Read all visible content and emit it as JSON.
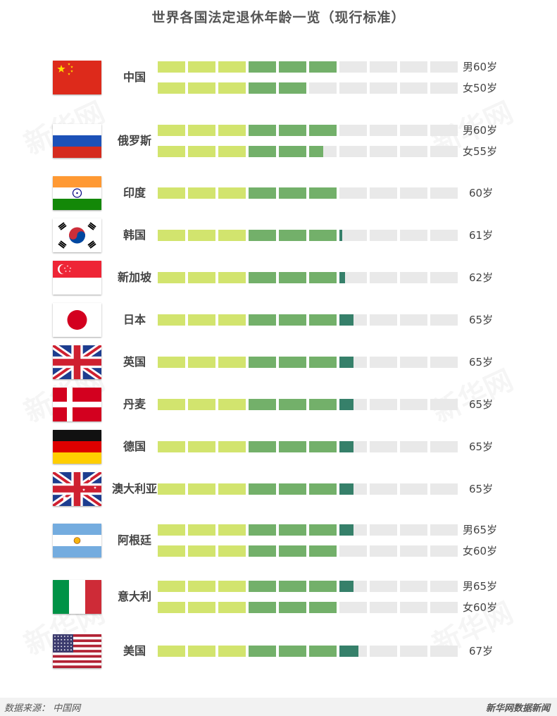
{
  "title": "世界各国法定退休年龄一览（现行标准）",
  "footer": {
    "source": "数据来源： 中国网",
    "brand": "新华网数据新闻"
  },
  "watermark": "新华网",
  "colors": {
    "segment_light": "#d2e46e",
    "segment_mid": "#73b06a",
    "segment_dark": "#36806a",
    "track": "#e9e9e9"
  },
  "chart_data": {
    "type": "bar",
    "title": "世界各国法定退休年龄一览（现行标准）",
    "unit": "岁",
    "xlim": [
      0,
      100
    ],
    "segment_size": 10,
    "countries": [
      {
        "name": "中国",
        "flag_icon": "china-flag-icon",
        "bars": [
          {
            "value": 60,
            "label": "男60岁"
          },
          {
            "value": 50,
            "label": "女50岁"
          }
        ]
      },
      {
        "name": "俄罗斯",
        "flag_icon": "russia-flag-icon",
        "bars": [
          {
            "value": 60,
            "label": "男60岁"
          },
          {
            "value": 55,
            "label": "女55岁"
          }
        ]
      },
      {
        "name": "印度",
        "flag_icon": "india-flag-icon",
        "bars": [
          {
            "value": 60,
            "label": "60岁"
          }
        ]
      },
      {
        "name": "韩国",
        "flag_icon": "korea-flag-icon",
        "bars": [
          {
            "value": 61,
            "label": "61岁"
          }
        ]
      },
      {
        "name": "新加坡",
        "flag_icon": "singapore-flag-icon",
        "bars": [
          {
            "value": 62,
            "label": "62岁"
          }
        ]
      },
      {
        "name": "日本",
        "flag_icon": "japan-flag-icon",
        "bars": [
          {
            "value": 65,
            "label": "65岁"
          }
        ]
      },
      {
        "name": "英国",
        "flag_icon": "uk-flag-icon",
        "bars": [
          {
            "value": 65,
            "label": "65岁"
          }
        ]
      },
      {
        "name": "丹麦",
        "flag_icon": "denmark-flag-icon",
        "bars": [
          {
            "value": 65,
            "label": "65岁"
          }
        ]
      },
      {
        "name": "德国",
        "flag_icon": "germany-flag-icon",
        "bars": [
          {
            "value": 65,
            "label": "65岁"
          }
        ]
      },
      {
        "name": "澳大利亚",
        "flag_icon": "australia-flag-icon",
        "bars": [
          {
            "value": 65,
            "label": "65岁"
          }
        ]
      },
      {
        "name": "阿根廷",
        "flag_icon": "argentina-flag-icon",
        "bars": [
          {
            "value": 65,
            "label": "男65岁"
          },
          {
            "value": 60,
            "label": "女60岁"
          }
        ]
      },
      {
        "name": "意大利",
        "flag_icon": "italy-flag-icon",
        "bars": [
          {
            "value": 65,
            "label": "男65岁"
          },
          {
            "value": 60,
            "label": "女60岁"
          }
        ]
      },
      {
        "name": "美国",
        "flag_icon": "usa-flag-icon",
        "bars": [
          {
            "value": 67,
            "label": "67岁"
          }
        ]
      }
    ]
  }
}
